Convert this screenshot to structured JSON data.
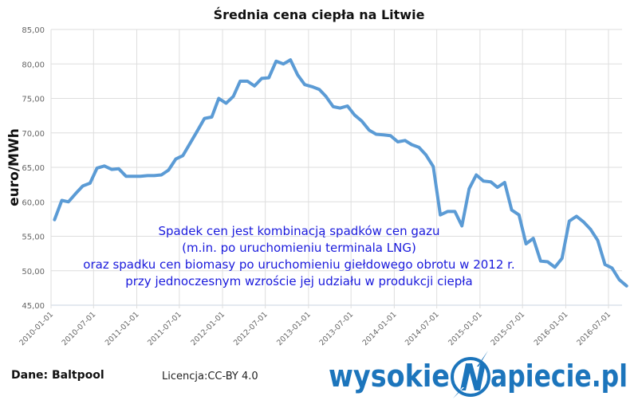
{
  "chart_data": {
    "type": "line",
    "title": "Średnia cena ciepła na Litwie",
    "xlabel": "",
    "ylabel": "euro/MWh",
    "ylim": [
      45,
      85
    ],
    "yticks": [
      "45,00",
      "50,00",
      "55,00",
      "60,00",
      "65,00",
      "70,00",
      "75,00",
      "80,00",
      "85,00"
    ],
    "xticks": [
      "2010-01-01",
      "2010-07-01",
      "2011-01-01",
      "2011-07-01",
      "2012-01-01",
      "2012-07-01",
      "2013-01-01",
      "2013-07-01",
      "2014-01-01",
      "2014-07-01",
      "2015-01-01",
      "2015-07-01",
      "2016-01-01",
      "2016-07-01"
    ],
    "grid": true,
    "legend": "none",
    "series_color": "#5b9bd5",
    "x": [
      "2010-01",
      "2010-02",
      "2010-03",
      "2010-04",
      "2010-05",
      "2010-06",
      "2010-07",
      "2010-08",
      "2010-09",
      "2010-10",
      "2010-11",
      "2010-12",
      "2011-01",
      "2011-02",
      "2011-03",
      "2011-04",
      "2011-05",
      "2011-06",
      "2011-07",
      "2011-08",
      "2011-09",
      "2011-10",
      "2011-11",
      "2011-12",
      "2012-01",
      "2012-02",
      "2012-03",
      "2012-04",
      "2012-05",
      "2012-06",
      "2012-07",
      "2012-08",
      "2012-09",
      "2012-10",
      "2012-11",
      "2012-12",
      "2013-01",
      "2013-02",
      "2013-03",
      "2013-04",
      "2013-05",
      "2013-06",
      "2013-07",
      "2013-08",
      "2013-09",
      "2013-10",
      "2013-11",
      "2013-12",
      "2014-01",
      "2014-02",
      "2014-03",
      "2014-04",
      "2014-05",
      "2014-06",
      "2014-07",
      "2014-08",
      "2014-09",
      "2014-10",
      "2014-11",
      "2014-12",
      "2015-01",
      "2015-02",
      "2015-03",
      "2015-04",
      "2015-05",
      "2015-06",
      "2015-07",
      "2015-08",
      "2015-09",
      "2015-10",
      "2015-11",
      "2015-12",
      "2016-01",
      "2016-02",
      "2016-03",
      "2016-04",
      "2016-05",
      "2016-06",
      "2016-07",
      "2016-08",
      "2016-09"
    ],
    "values": [
      57.4,
      60.2,
      60.0,
      61.2,
      62.3,
      62.7,
      64.9,
      65.2,
      64.7,
      64.8,
      63.7,
      63.7,
      63.7,
      63.8,
      63.8,
      63.9,
      64.6,
      66.2,
      66.7,
      68.5,
      70.3,
      72.1,
      72.3,
      75.0,
      74.3,
      75.3,
      77.5,
      77.5,
      76.8,
      77.9,
      78.0,
      80.4,
      80.0,
      80.6,
      78.4,
      77.0,
      76.7,
      76.3,
      75.3,
      73.8,
      73.6,
      73.9,
      72.6,
      71.7,
      70.4,
      69.8,
      69.7,
      69.6,
      68.7,
      68.9,
      68.3,
      67.9,
      66.8,
      65.1,
      58.1,
      58.6,
      58.6,
      56.5,
      61.9,
      63.9,
      63.0,
      62.9,
      62.1,
      62.8,
      58.8,
      58.1,
      53.9,
      54.7,
      51.4,
      51.3,
      50.5,
      51.8,
      57.2,
      57.9,
      57.1,
      56.0,
      54.4,
      50.9,
      50.4,
      48.7,
      47.8
    ],
    "annotation": [
      "Spadek cen jest kombinacją spadków cen gazu",
      "(m.in. po uruchomieniu terminala LNG)",
      "oraz spadku cen biomasy po uruchomieniu giełdowego obrotu w 2012 r.",
      "przy jednoczesnym wzroście jej udziału w produkcji ciepła"
    ]
  },
  "footer": {
    "source": "Dane: Baltpool",
    "license": "Licencja:CC-BY 4.0",
    "logo_text": "wysokienapiecie.pl",
    "logo_color": "#1c75bc"
  }
}
